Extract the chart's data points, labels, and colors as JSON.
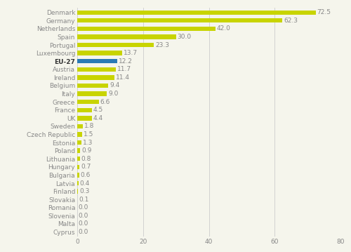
{
  "categories": [
    "Denmark",
    "Germany",
    "Netherlands",
    "Spain",
    "Portugal",
    "Luxembourg",
    "EU-27",
    "Austria",
    "Ireland",
    "Belgium",
    "Italy",
    "Greece",
    "France",
    "UK",
    "Sweden",
    "Czech Republic",
    "Estonia",
    "Poland",
    "Lithuania",
    "Hungary",
    "Bulgaria",
    "Latvia",
    "Finland",
    "Slovakia",
    "Romania",
    "Slovenia",
    "Malta",
    "Cyprus"
  ],
  "values": [
    72.5,
    62.3,
    42.0,
    30.0,
    23.3,
    13.7,
    12.2,
    11.7,
    11.4,
    9.4,
    9.0,
    6.6,
    4.5,
    4.4,
    1.8,
    1.5,
    1.3,
    0.9,
    0.8,
    0.7,
    0.6,
    0.4,
    0.3,
    0.1,
    0.0,
    0.0,
    0.0,
    0.0
  ],
  "bar_color_default": "#c8d400",
  "bar_color_eu27": "#2a7ab5",
  "background_color": "#f5f5ec",
  "grid_color": "#cccccc",
  "text_color": "#888888",
  "eu27_text_color": "#333333",
  "label_fontsize": 6.5,
  "value_fontsize": 6.5,
  "xlim": [
    0,
    80
  ],
  "xticks": [
    0,
    20,
    40,
    60,
    80
  ]
}
